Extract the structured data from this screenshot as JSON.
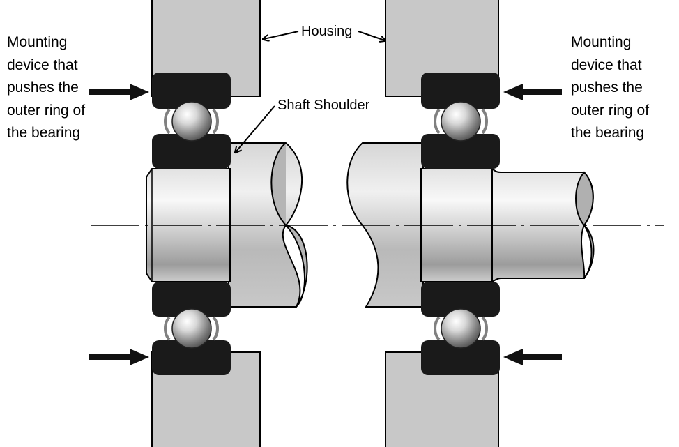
{
  "labels": {
    "housing": "Housing",
    "shaft_shoulder": "Shaft Shoulder",
    "left_mounting": [
      "Mounting",
      "device that",
      "pushes the",
      "outer ring of",
      "the bearing"
    ],
    "right_mounting": [
      "Mounting",
      "device that",
      "pushes the",
      "outer ring of",
      "the bearing"
    ]
  },
  "colors": {
    "housing_fill": "#c8c8c8",
    "ring_fill": "#1a1a1a",
    "outline": "#000000",
    "arrow": "#111111",
    "cage": "#808080"
  },
  "icons": {
    "bearing_ball": "ball-icon",
    "push_arrow": "arrow-right-icon"
  }
}
